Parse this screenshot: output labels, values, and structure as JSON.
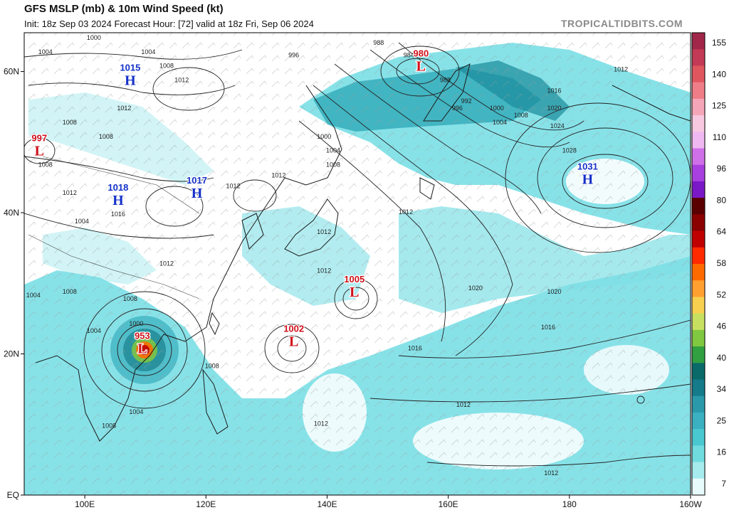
{
  "header": {
    "title": "GFS MSLP (mb) & 10m Wind Speed (kt)",
    "subtitle": "Init: 18z Sep 03 2024   Forecast Hour: [72]   valid at 18z Fri, Sep 06 2024",
    "brand": "TROPICALTIDBITS.COM"
  },
  "axes": {
    "lat_labels": [
      {
        "text": "60N",
        "lat": 60
      },
      {
        "text": "40N",
        "lat": 40
      },
      {
        "text": "20N",
        "lat": 20
      },
      {
        "text": "EQ",
        "lat": 0
      }
    ],
    "lon_labels": [
      {
        "text": "100E",
        "lon": 100
      },
      {
        "text": "120E",
        "lon": 120
      },
      {
        "text": "140E",
        "lon": 140
      },
      {
        "text": "160E",
        "lon": 160
      },
      {
        "text": "180",
        "lon": 180
      },
      {
        "text": "160W",
        "lon": 200
      }
    ]
  },
  "colorbar": {
    "labels": [
      "155",
      "140",
      "125",
      "110",
      "96",
      "80",
      "64",
      "58",
      "52",
      "46",
      "40",
      "34",
      "25",
      "16",
      "7"
    ],
    "colors": [
      "#a0274a",
      "#c23a55",
      "#e0565f",
      "#ee7d88",
      "#f4a6b8",
      "#f8c8e0",
      "#f0b8f0",
      "#d070e8",
      "#a840e0",
      "#7a18c8",
      "#5a0000",
      "#8b0000",
      "#c00000",
      "#ff2a00",
      "#ff6a00",
      "#ffa030",
      "#f8d050",
      "#c8e060",
      "#80c840",
      "#30a040",
      "#0a6a6a",
      "#157a8a",
      "#2a9aaa",
      "#3ab0c0",
      "#4ac8d0",
      "#70dce0",
      "#a6ecef",
      "#e8fbfc"
    ]
  },
  "systems": [
    {
      "type": "L",
      "value": "997",
      "lon": 92.5,
      "lat": 48.5
    },
    {
      "type": "H",
      "value": "1015",
      "lon": 107.5,
      "lat": 58.5
    },
    {
      "type": "H",
      "value": "1018",
      "lon": 105.5,
      "lat": 41.5
    },
    {
      "type": "H",
      "value": "1017",
      "lon": 118.5,
      "lat": 42.5
    },
    {
      "type": "L",
      "value": "980",
      "lon": 155.5,
      "lat": 60.5
    },
    {
      "type": "H",
      "value": "1031",
      "lon": 183.0,
      "lat": 44.5
    },
    {
      "type": "L",
      "value": "1005",
      "lon": 144.5,
      "lat": 28.5
    },
    {
      "type": "L",
      "value": "1002",
      "lon": 134.5,
      "lat": 21.5
    },
    {
      "type": "L",
      "value": "953",
      "lon": 109.5,
      "lat": 20.5
    }
  ],
  "isobar_labels": [
    {
      "text": "1000",
      "lon": 101.5,
      "lat": 64.5
    },
    {
      "text": "1004",
      "lon": 93.5,
      "lat": 62.5
    },
    {
      "text": "1004",
      "lon": 110.5,
      "lat": 62.5
    },
    {
      "text": "1008",
      "lon": 113.5,
      "lat": 60.5
    },
    {
      "text": "1012",
      "lon": 116.0,
      "lat": 58.5
    },
    {
      "text": "1012",
      "lon": 106.5,
      "lat": 54.5
    },
    {
      "text": "1008",
      "lon": 97.5,
      "lat": 52.5
    },
    {
      "text": "1008",
      "lon": 103.5,
      "lat": 50.5
    },
    {
      "text": "1008",
      "lon": 93.5,
      "lat": 46.5
    },
    {
      "text": "1012",
      "lon": 97.5,
      "lat": 42.5
    },
    {
      "text": "1004",
      "lon": 99.5,
      "lat": 38.5
    },
    {
      "text": "1016",
      "lon": 105.5,
      "lat": 39.5
    },
    {
      "text": "1012",
      "lon": 124.5,
      "lat": 43.5
    },
    {
      "text": "1012",
      "lon": 113.5,
      "lat": 32.5
    },
    {
      "text": "1004",
      "lon": 91.5,
      "lat": 28.0
    },
    {
      "text": "1008",
      "lon": 97.5,
      "lat": 28.5
    },
    {
      "text": "1008",
      "lon": 107.5,
      "lat": 27.5
    },
    {
      "text": "1004",
      "lon": 101.5,
      "lat": 23.0
    },
    {
      "text": "1000",
      "lon": 108.5,
      "lat": 24.0
    },
    {
      "text": "1008",
      "lon": 121.0,
      "lat": 18.0
    },
    {
      "text": "1004",
      "lon": 108.5,
      "lat": 11.5
    },
    {
      "text": "1008",
      "lon": 104.0,
      "lat": 9.5
    },
    {
      "text": "996",
      "lon": 134.5,
      "lat": 62.0
    },
    {
      "text": "988",
      "lon": 148.5,
      "lat": 63.8
    },
    {
      "text": "984",
      "lon": 153.5,
      "lat": 62.0
    },
    {
      "text": "988",
      "lon": 159.5,
      "lat": 58.5
    },
    {
      "text": "992",
      "lon": 163.0,
      "lat": 55.5
    },
    {
      "text": "996",
      "lon": 161.5,
      "lat": 54.5
    },
    {
      "text": "1000",
      "lon": 168.0,
      "lat": 54.5
    },
    {
      "text": "1004",
      "lon": 168.5,
      "lat": 52.5
    },
    {
      "text": "1008",
      "lon": 172.0,
      "lat": 53.5
    },
    {
      "text": "1012",
      "lon": 188.5,
      "lat": 60.0
    },
    {
      "text": "1016",
      "lon": 177.5,
      "lat": 57.0
    },
    {
      "text": "1020",
      "lon": 177.5,
      "lat": 54.5
    },
    {
      "text": "1024",
      "lon": 178.0,
      "lat": 52.0
    },
    {
      "text": "1028",
      "lon": 180.0,
      "lat": 48.5
    },
    {
      "text": "1000",
      "lon": 139.5,
      "lat": 50.5
    },
    {
      "text": "1004",
      "lon": 141.0,
      "lat": 48.5
    },
    {
      "text": "1008",
      "lon": 141.0,
      "lat": 46.5
    },
    {
      "text": "1012",
      "lon": 132.0,
      "lat": 45.0
    },
    {
      "text": "1012",
      "lon": 153.0,
      "lat": 39.8
    },
    {
      "text": "1012",
      "lon": 139.5,
      "lat": 37.0
    },
    {
      "text": "1012",
      "lon": 139.5,
      "lat": 31.5
    },
    {
      "text": "1020",
      "lon": 164.5,
      "lat": 29.0
    },
    {
      "text": "1020",
      "lon": 177.5,
      "lat": 28.5
    },
    {
      "text": "1016",
      "lon": 176.5,
      "lat": 23.5
    },
    {
      "text": "1016",
      "lon": 154.5,
      "lat": 20.5
    },
    {
      "text": "1012",
      "lon": 162.5,
      "lat": 12.5
    },
    {
      "text": "1012",
      "lon": 139.0,
      "lat": 9.8
    },
    {
      "text": "1012",
      "lon": 177.0,
      "lat": 2.8
    }
  ]
}
